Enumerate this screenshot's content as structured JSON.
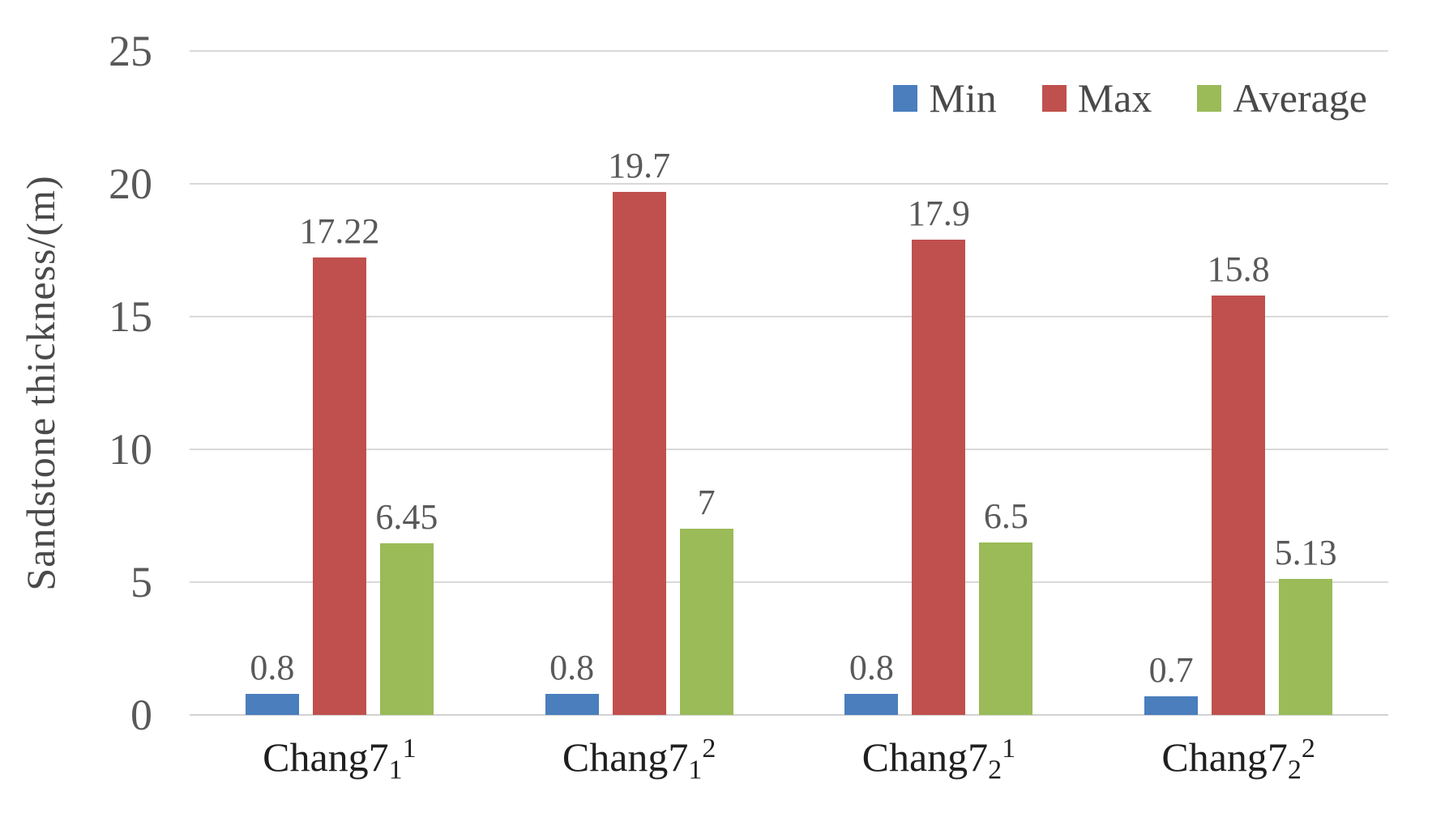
{
  "chart_data": {
    "type": "bar",
    "title": "",
    "xlabel": "",
    "ylabel": "Sandstone thickness/(m)",
    "ylim": [
      0,
      25
    ],
    "yticks": [
      "0",
      "5",
      "10",
      "15",
      "20",
      "25"
    ],
    "grid": true,
    "legend_position": "top-right",
    "categories": [
      {
        "base": "Chang7",
        "sub": "1",
        "sup": "1"
      },
      {
        "base": "Chang7",
        "sub": "1",
        "sup": "2"
      },
      {
        "base": "Chang7",
        "sub": "2",
        "sup": "1"
      },
      {
        "base": "Chang7",
        "sub": "2",
        "sup": "2"
      }
    ],
    "series": [
      {
        "name": "Min",
        "color": "#4a7ebd",
        "values": [
          0.8,
          0.8,
          0.8,
          0.7
        ]
      },
      {
        "name": "Max",
        "color": "#c0504d",
        "values": [
          17.22,
          19.7,
          17.9,
          15.8
        ]
      },
      {
        "name": "Average",
        "color": "#9abb58",
        "values": [
          6.45,
          7,
          6.5,
          5.13
        ]
      }
    ]
  }
}
